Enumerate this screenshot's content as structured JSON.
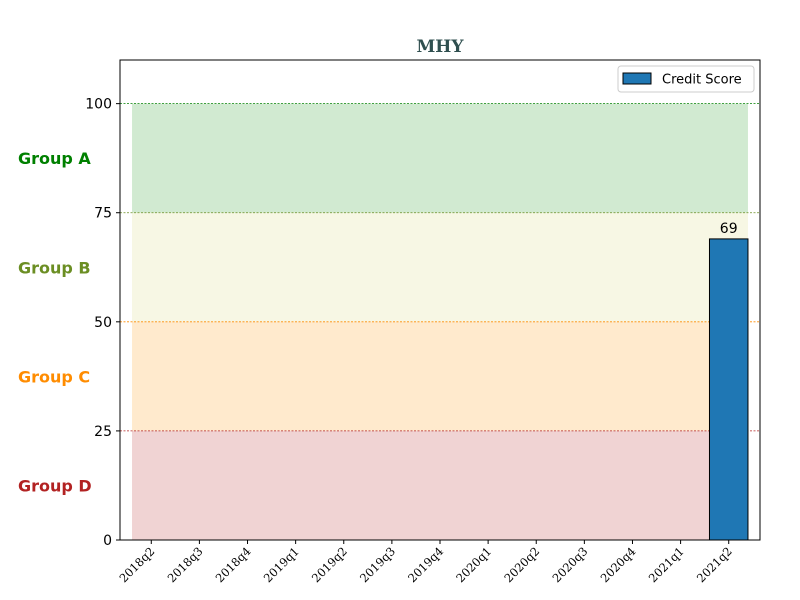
{
  "chart_data": {
    "type": "bar",
    "title": "MHY",
    "title_color": "#2f4f4f",
    "categories": [
      "2018q2",
      "2018q3",
      "2018q4",
      "2019q1",
      "2019q2",
      "2019q3",
      "2019q4",
      "2020q1",
      "2020q2",
      "2020q3",
      "2020q4",
      "2021q1",
      "2021q2"
    ],
    "series": [
      {
        "name": "Credit Score",
        "color": "#1f77b4",
        "values": [
          null,
          null,
          null,
          null,
          null,
          null,
          null,
          null,
          null,
          null,
          null,
          null,
          69
        ]
      }
    ],
    "data_labels": [
      {
        "category": "2021q2",
        "text": "69"
      }
    ],
    "yticks": [
      "0",
      "25",
      "50",
      "75",
      "100"
    ],
    "ylim": [
      0,
      110
    ],
    "xlabel": "",
    "ylabel": "",
    "grid": false,
    "legend_position": "top-right",
    "bands": [
      {
        "label": "Group A",
        "from": 75,
        "to": 100,
        "color": "#008000",
        "fill": "#2ca02c",
        "fill_opacity": 0.22
      },
      {
        "label": "Group B",
        "from": 50,
        "to": 75,
        "color": "#6b8e23",
        "fill": "#bcbd22",
        "fill_opacity": 0.12
      },
      {
        "label": "Group C",
        "from": 25,
        "to": 50,
        "color": "#ff8c00",
        "fill": "#ff9f1c",
        "fill_opacity": 0.22
      },
      {
        "label": "Group D",
        "from": 0,
        "to": 25,
        "color": "#b22222",
        "fill": "#b22222",
        "fill_opacity": 0.2
      }
    ],
    "threshold_lines": [
      {
        "value": 25,
        "color": "#b22222"
      },
      {
        "value": 50,
        "color": "#ff8c00"
      },
      {
        "value": 75,
        "color": "#6b8e23"
      },
      {
        "value": 100,
        "color": "#008000"
      }
    ]
  }
}
